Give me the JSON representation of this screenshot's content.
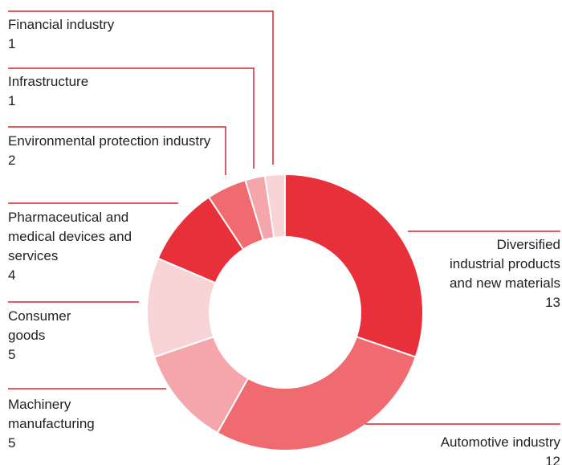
{
  "chart_data": {
    "type": "donut",
    "categories": [
      "Diversified industrial products and new materials",
      "Automotive industry",
      "Machinery manufacturing",
      "Consumer goods",
      "Pharmaceutical and medical devices and services",
      "Environmental protection industry",
      "Infrastructure",
      "Financial industry"
    ],
    "values": [
      13,
      12,
      5,
      5,
      4,
      2,
      1,
      1
    ],
    "colors": [
      "#e8303a",
      "#f06b70",
      "#f4a6aa",
      "#f9d4d6",
      "#e8303a",
      "#f06b70",
      "#f4a6aa",
      "#f9d4d6"
    ]
  }
}
